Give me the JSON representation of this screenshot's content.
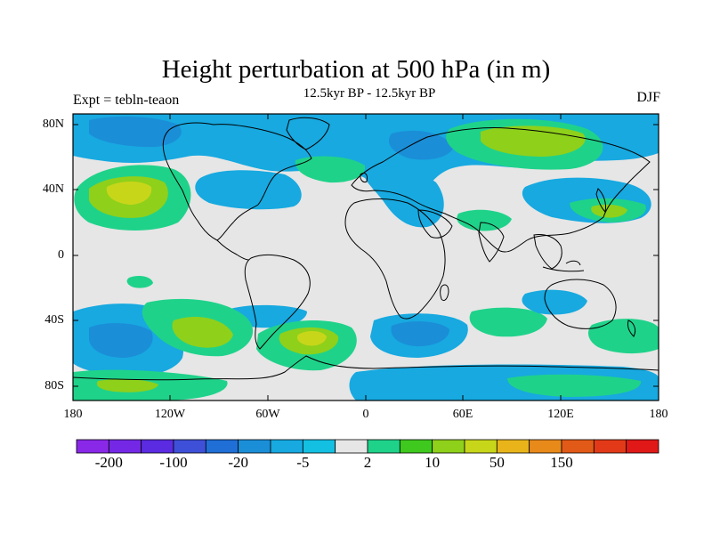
{
  "title": "Height perturbation at 500 hPa (in m)",
  "subtitle": "12.5kyr BP - 12.5kyr BP",
  "left_label": "Expt = tebln-teaon",
  "right_label": "DJF",
  "lat_ticks": [
    "80N",
    "40N",
    "0",
    "40S",
    "80S"
  ],
  "lon_ticks": [
    "180",
    "120W",
    "60W",
    "0",
    "60E",
    "120E",
    "180"
  ],
  "colorbar": {
    "colors": [
      "#8a28e8",
      "#7428e6",
      "#5a2be0",
      "#3f50d8",
      "#1f6fd6",
      "#1b8ed8",
      "#17a9e0",
      "#14c0e2",
      "#e6e6e6",
      "#1fd28a",
      "#3fc91e",
      "#8fd01a",
      "#c8d61a",
      "#e8b41a",
      "#e88a1a",
      "#e25a18",
      "#e23a18",
      "#e01818"
    ],
    "labels": [
      "-200",
      "-100",
      "-20",
      "-5",
      "2",
      "10",
      "50",
      "150"
    ]
  }
}
